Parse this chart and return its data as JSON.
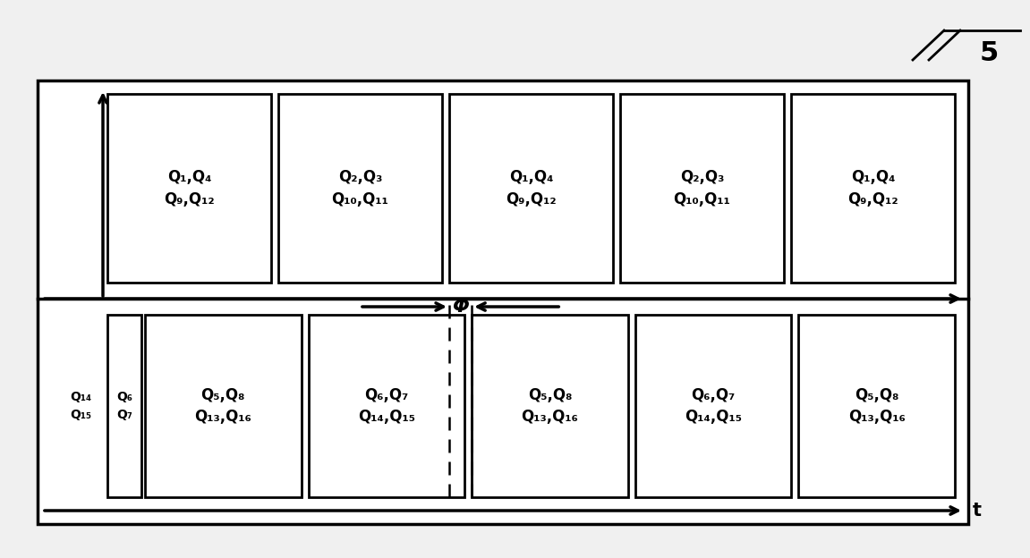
{
  "fig_width": 11.51,
  "fig_height": 6.24,
  "bg_color": "#f0f0f0",
  "inner_bg": "#ffffff",
  "border_color": "#000000",
  "figure_label": "5",
  "top_row_labels": [
    "Q₁,Q₄\nQ₉,Q₁₂",
    "Q₂,Q₃\nQ₁₀,Q₁₁",
    "Q₁,Q₄\nQ₉,Q₁₂",
    "Q₂,Q₃\nQ₁₀,Q₁₁",
    "Q₁,Q₄\nQ₉,Q₁₂"
  ],
  "bot_label_out_a": "Q₁₄\nQ₁₅",
  "bot_label_out_b": "Q₆\nQ₇",
  "bot_row_labels": [
    "Q₅,Q₈\nQ₁₃,Q₁₆",
    "Q₆,Q₇\nQ₁₄,Q₁₅",
    "Q₅,Q₈\nQ₁₃,Q₁₆",
    "Q₆,Q₇\nQ₁₄,Q₁₅",
    "Q₅,Q₈\nQ₁₃,Q₁₆"
  ],
  "phi_label": "Φ",
  "t_label": "t",
  "font_size": 12,
  "font_size_small": 10
}
